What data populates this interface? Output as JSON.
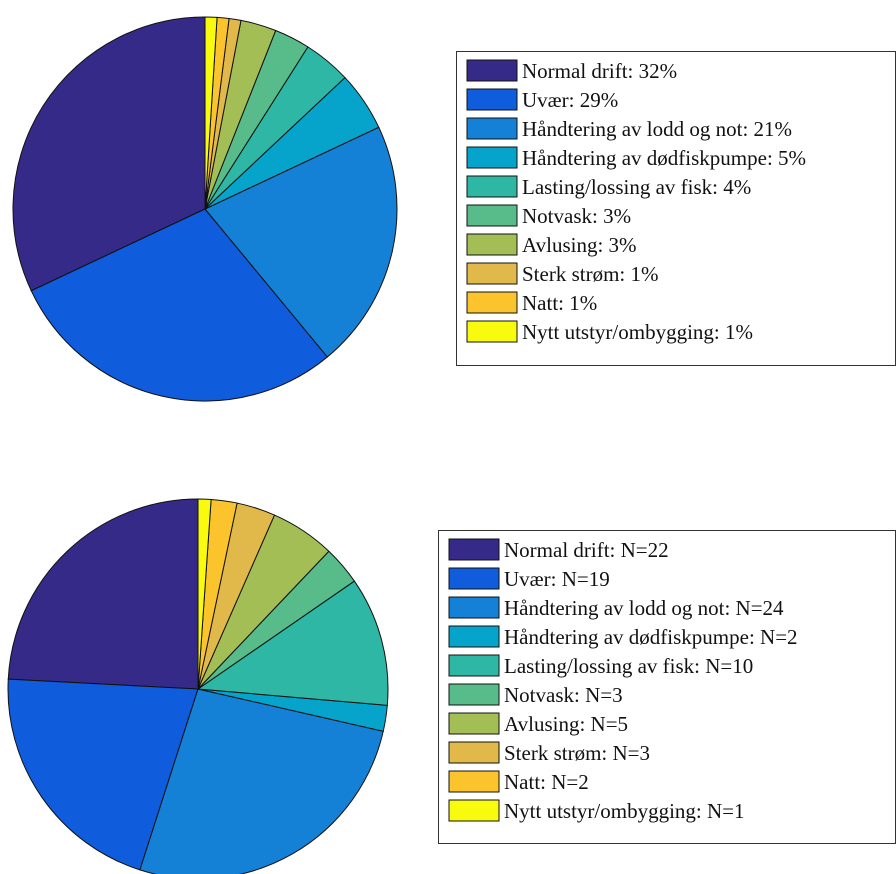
{
  "colors": [
    "#352a87",
    "#0f5cdd",
    "#1481d6",
    "#06a4ca",
    "#2eb7a4",
    "#57bb8a",
    "#a4be56",
    "#e1b94a",
    "#fbc42d",
    "#f9fb0e"
  ],
  "chart_data": [
    {
      "type": "pie",
      "labels": [
        "Normal drift",
        "Uvær",
        "Håndtering av lodd og not",
        "Håndtering av dødfiskpumpe",
        "Lasting/lossing av fisk",
        "Notvask",
        "Avlusing",
        "Sterk strøm",
        "Natt",
        "Nytt utstyr/ombygging"
      ],
      "values": [
        32,
        29,
        21,
        5,
        4,
        3,
        3,
        1,
        1,
        1
      ],
      "legend": [
        "Normal drift:  32%",
        "Uvær:  29%",
        "Håndtering av lodd og not:  21%",
        "Håndtering av dødfiskpumpe:  5%",
        "Lasting/lossing av fisk:  4%",
        "Notvask:  3%",
        "Avlusing:  3%",
        "Sterk strøm:  1%",
        "Natt:  1%",
        "Nytt utstyr/ombygging:  1%"
      ],
      "legend_position": "right"
    },
    {
      "type": "pie",
      "labels": [
        "Normal drift",
        "Uvær",
        "Håndtering av lodd og not",
        "Håndtering av dødfiskpumpe",
        "Lasting/lossing av fisk",
        "Notvask",
        "Avlusing",
        "Sterk strøm",
        "Natt",
        "Nytt utstyr/ombygging"
      ],
      "values": [
        22,
        19,
        24,
        2,
        10,
        3,
        5,
        3,
        2,
        1
      ],
      "legend": [
        "Normal drift:  N=22",
        "Uvær:  N=19",
        "Håndtering av lodd og not:  N=24",
        "Håndtering av dødfiskpumpe:  N=2",
        "Lasting/lossing av fisk:  N=10",
        "Notvask:  N=3",
        "Avlusing:  N=5",
        "Sterk strøm:  N=3",
        "Natt:  N=2",
        "Nytt utstyr/ombygging:  N=1"
      ],
      "legend_position": "right"
    }
  ]
}
